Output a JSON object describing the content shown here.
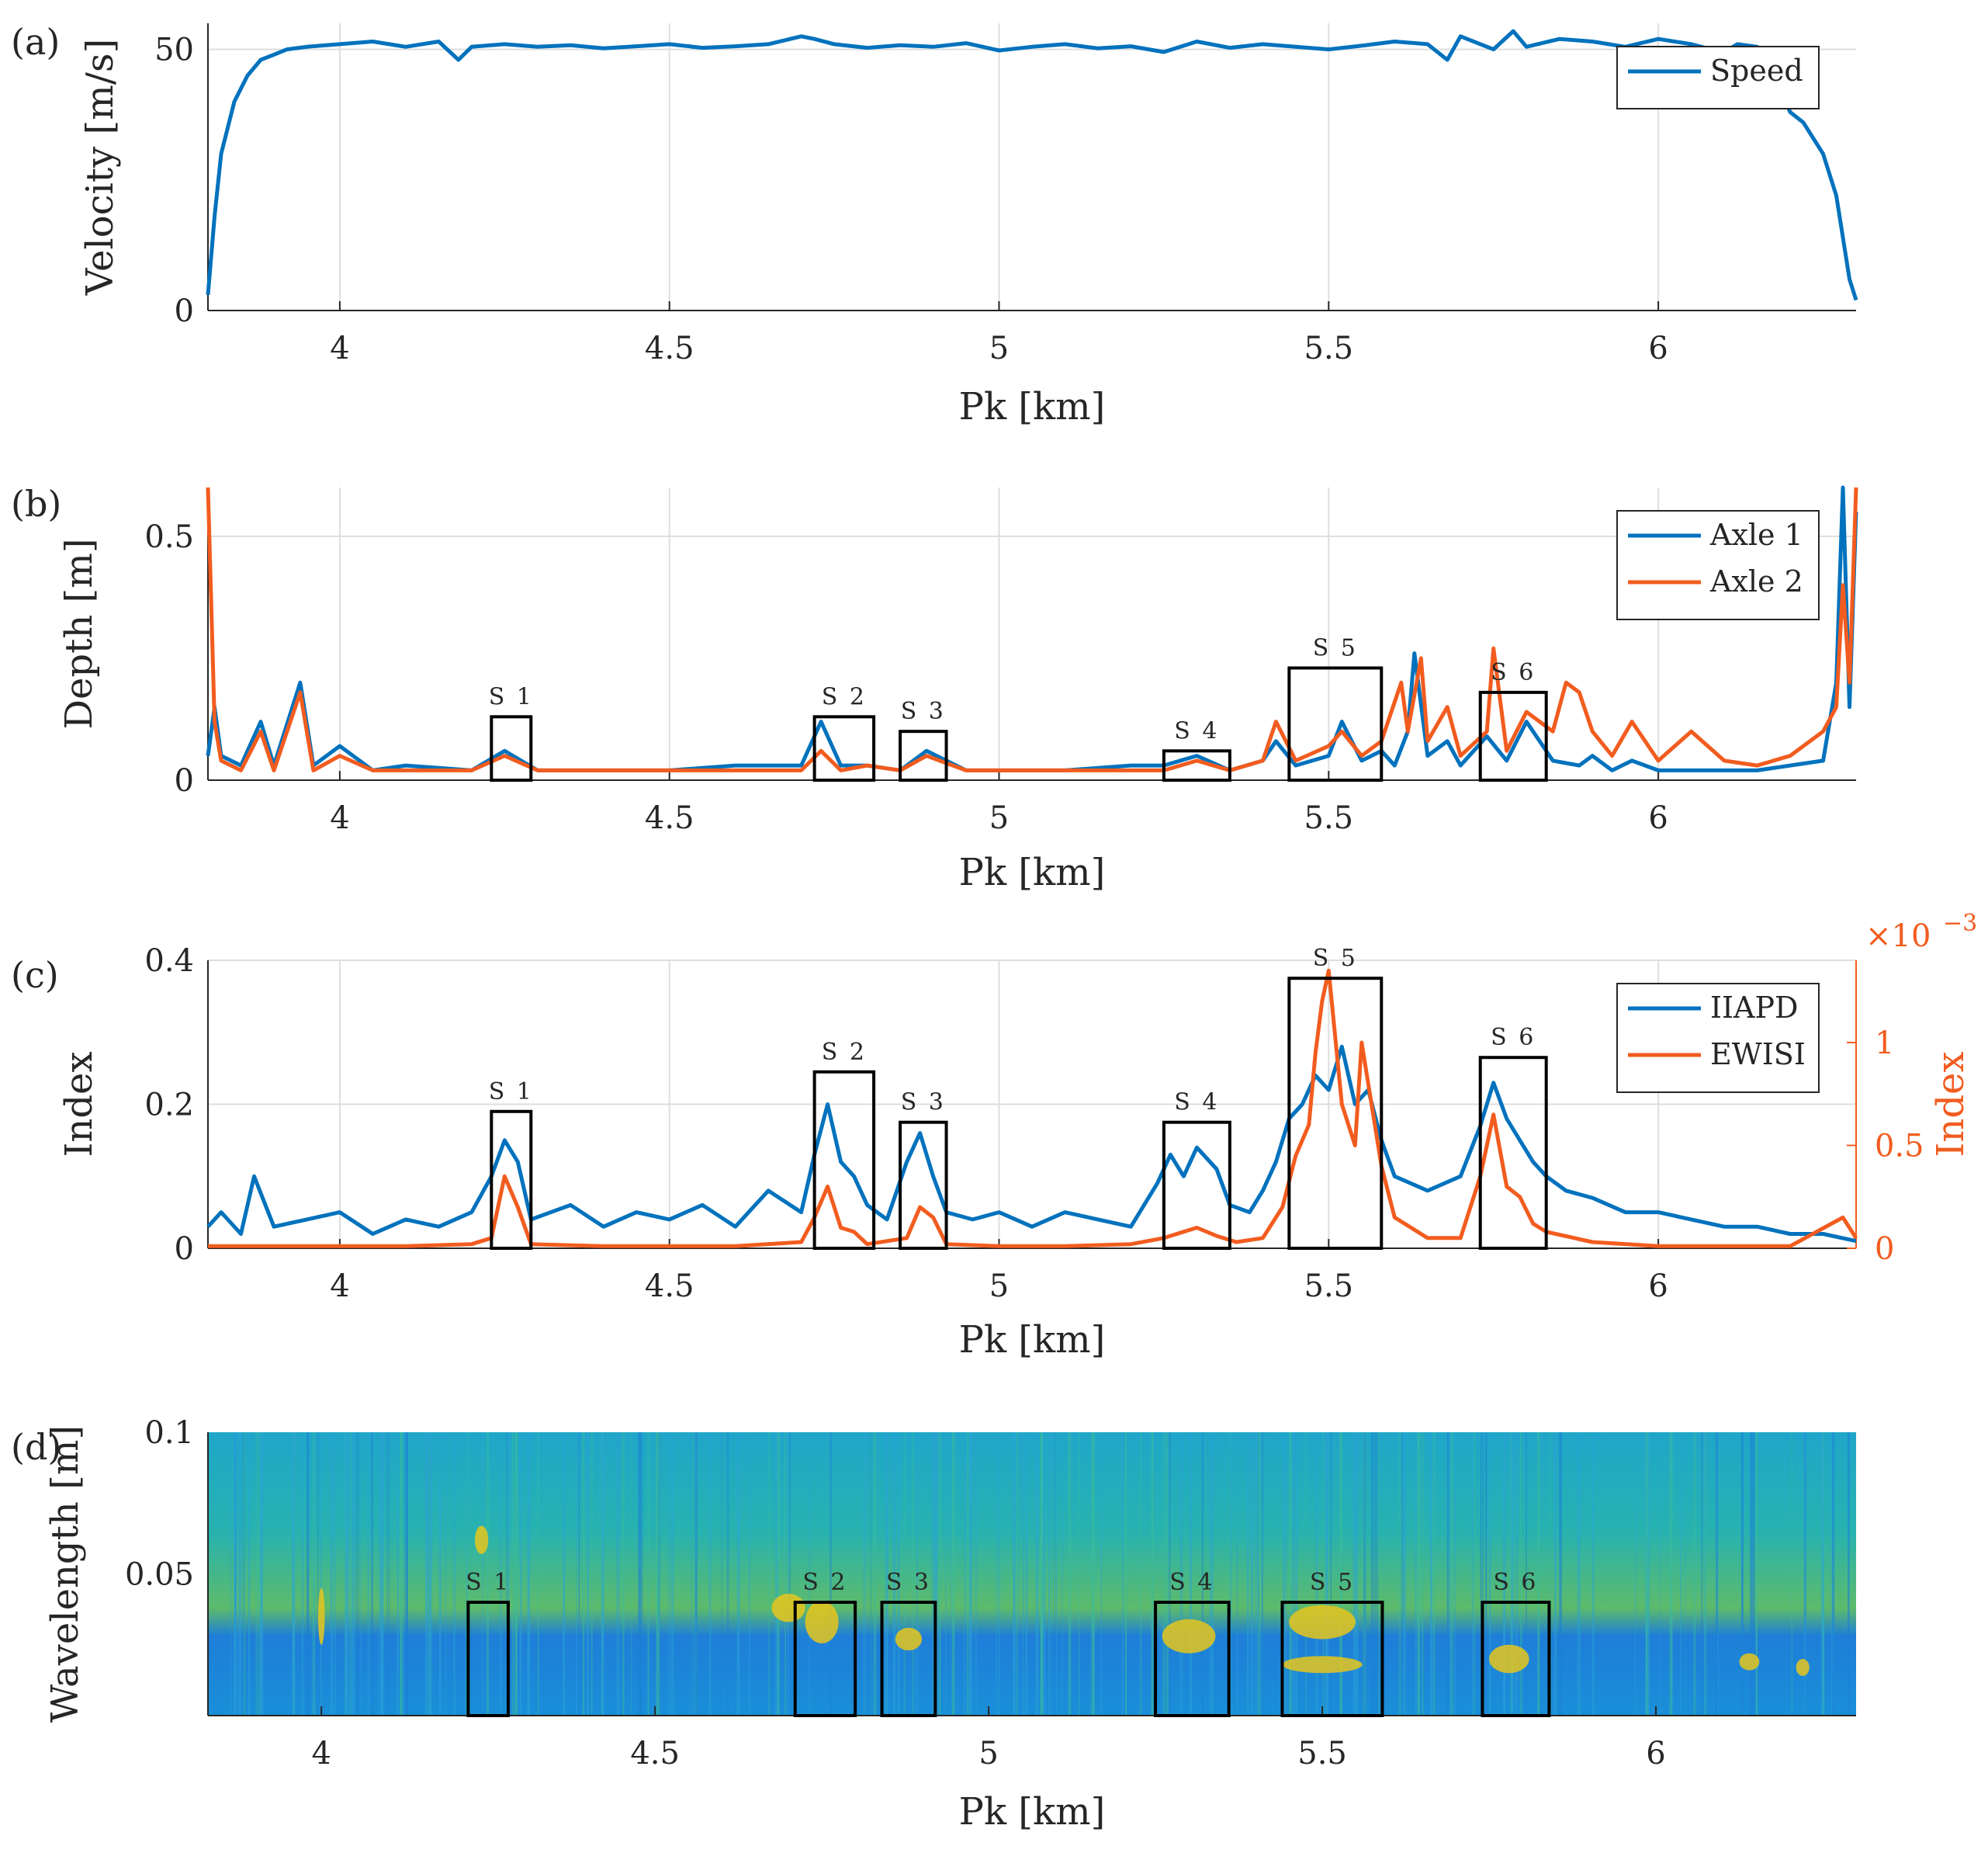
{
  "colors": {
    "blue": "#0072BD",
    "orange": "#F25C1F",
    "axis": "#262626",
    "grid": "#dedede",
    "box": "#000000"
  },
  "figure": {
    "panel_a_label": "(a)",
    "panel_b_label": "(b)",
    "panel_c_label": "(c)",
    "panel_d_label": "(d)"
  },
  "chart_data": [
    {
      "id": "a",
      "type": "line",
      "title": "",
      "xlabel": "Pk [km]",
      "ylabel": "Velocity [m/s]",
      "xlim": [
        3.8,
        6.3
      ],
      "ylim": [
        0,
        55
      ],
      "xticks": [
        4,
        4.5,
        5,
        5.5,
        6
      ],
      "xtick_labels": [
        "4",
        "4.5",
        "5",
        "5.5",
        "6"
      ],
      "yticks": [
        0,
        50
      ],
      "ytick_labels": [
        "0",
        "50"
      ],
      "grid": "vertical",
      "legend_position": "top-right",
      "series": [
        {
          "name": "Speed",
          "color": "blue",
          "x": [
            3.8,
            3.81,
            3.82,
            3.84,
            3.86,
            3.88,
            3.9,
            3.92,
            3.95,
            4.0,
            4.05,
            4.1,
            4.15,
            4.18,
            4.2,
            4.25,
            4.3,
            4.35,
            4.4,
            4.45,
            4.5,
            4.55,
            4.6,
            4.65,
            4.7,
            4.72,
            4.75,
            4.8,
            4.85,
            4.9,
            4.95,
            5.0,
            5.05,
            5.1,
            5.15,
            5.2,
            5.25,
            5.3,
            5.35,
            5.4,
            5.45,
            5.5,
            5.55,
            5.6,
            5.65,
            5.68,
            5.7,
            5.75,
            5.78,
            5.8,
            5.85,
            5.9,
            5.95,
            6.0,
            6.05,
            6.08,
            6.1,
            6.12,
            6.15,
            6.18,
            6.2,
            6.22,
            6.25,
            6.27,
            6.29,
            6.3
          ],
          "y": [
            3,
            18,
            30,
            40,
            45,
            48,
            49,
            50,
            50.5,
            51,
            51.5,
            50.5,
            51.5,
            48,
            50.5,
            51,
            50.5,
            50.8,
            50.2,
            50.6,
            51,
            50.3,
            50.6,
            51,
            52.5,
            52,
            51,
            50.3,
            50.8,
            50.5,
            51.2,
            49.8,
            50.5,
            51,
            50.2,
            50.6,
            49.5,
            51.5,
            50.3,
            51,
            50.5,
            50,
            50.7,
            51.5,
            51,
            48,
            52.5,
            50,
            53.5,
            50.5,
            52,
            51.5,
            50.5,
            52,
            51,
            50,
            49.5,
            51,
            50.5,
            44,
            38,
            36,
            30,
            22,
            6,
            2
          ]
        }
      ]
    },
    {
      "id": "b",
      "type": "line",
      "title": "",
      "xlabel": "Pk [km]",
      "ylabel": "Depth [m]",
      "xlim": [
        3.8,
        6.3
      ],
      "ylim": [
        0,
        0.6
      ],
      "xticks": [
        4,
        4.5,
        5,
        5.5,
        6
      ],
      "xtick_labels": [
        "4",
        "4.5",
        "5",
        "5.5",
        "6"
      ],
      "yticks": [
        0,
        0.5
      ],
      "ytick_labels": [
        "0",
        "0.5"
      ],
      "grid": "vertical",
      "legend_position": "top-right",
      "series": [
        {
          "name": "Axle 1",
          "color": "blue",
          "x": [
            3.8,
            3.81,
            3.82,
            3.85,
            3.88,
            3.9,
            3.94,
            3.96,
            4.0,
            4.05,
            4.1,
            4.2,
            4.25,
            4.3,
            4.4,
            4.5,
            4.6,
            4.7,
            4.73,
            4.76,
            4.8,
            4.85,
            4.89,
            4.95,
            5.0,
            5.1,
            5.2,
            5.25,
            5.3,
            5.35,
            5.4,
            5.42,
            5.45,
            5.5,
            5.52,
            5.55,
            5.58,
            5.6,
            5.62,
            5.63,
            5.65,
            5.68,
            5.7,
            5.74,
            5.77,
            5.8,
            5.84,
            5.88,
            5.9,
            5.93,
            5.96,
            6.0,
            6.05,
            6.1,
            6.15,
            6.2,
            6.25,
            6.27,
            6.28,
            6.29,
            6.3
          ],
          "y": [
            0.05,
            0.15,
            0.05,
            0.03,
            0.12,
            0.03,
            0.2,
            0.03,
            0.07,
            0.02,
            0.03,
            0.02,
            0.06,
            0.02,
            0.02,
            0.02,
            0.03,
            0.03,
            0.12,
            0.03,
            0.03,
            0.02,
            0.06,
            0.02,
            0.02,
            0.02,
            0.03,
            0.03,
            0.05,
            0.02,
            0.04,
            0.08,
            0.03,
            0.05,
            0.12,
            0.04,
            0.06,
            0.03,
            0.1,
            0.26,
            0.05,
            0.08,
            0.03,
            0.09,
            0.04,
            0.12,
            0.04,
            0.03,
            0.05,
            0.02,
            0.04,
            0.02,
            0.02,
            0.02,
            0.02,
            0.03,
            0.04,
            0.2,
            0.6,
            0.15,
            0.55
          ]
        },
        {
          "name": "Axle 2",
          "color": "orange",
          "x": [
            3.8,
            3.81,
            3.82,
            3.85,
            3.88,
            3.9,
            3.94,
            3.96,
            4.0,
            4.05,
            4.1,
            4.2,
            4.25,
            4.3,
            4.4,
            4.5,
            4.6,
            4.7,
            4.73,
            4.76,
            4.8,
            4.85,
            4.89,
            4.95,
            5.0,
            5.1,
            5.2,
            5.25,
            5.3,
            5.35,
            5.4,
            5.42,
            5.45,
            5.5,
            5.52,
            5.55,
            5.58,
            5.61,
            5.62,
            5.64,
            5.65,
            5.68,
            5.7,
            5.74,
            5.75,
            5.77,
            5.8,
            5.84,
            5.86,
            5.88,
            5.9,
            5.93,
            5.96,
            6.0,
            6.05,
            6.1,
            6.15,
            6.2,
            6.25,
            6.27,
            6.28,
            6.29,
            6.3
          ],
          "y": [
            0.6,
            0.12,
            0.04,
            0.02,
            0.1,
            0.02,
            0.18,
            0.02,
            0.05,
            0.02,
            0.02,
            0.02,
            0.05,
            0.02,
            0.02,
            0.02,
            0.02,
            0.02,
            0.06,
            0.02,
            0.03,
            0.02,
            0.05,
            0.02,
            0.02,
            0.02,
            0.02,
            0.02,
            0.04,
            0.02,
            0.04,
            0.12,
            0.04,
            0.07,
            0.1,
            0.05,
            0.08,
            0.2,
            0.1,
            0.25,
            0.08,
            0.15,
            0.05,
            0.1,
            0.27,
            0.06,
            0.14,
            0.1,
            0.2,
            0.18,
            0.1,
            0.05,
            0.12,
            0.04,
            0.1,
            0.04,
            0.03,
            0.05,
            0.1,
            0.15,
            0.4,
            0.2,
            0.6
          ]
        }
      ],
      "boxes": [
        {
          "label": "S 1",
          "x0": 4.23,
          "x1": 4.29,
          "top": 0.13
        },
        {
          "label": "S 2",
          "x0": 4.72,
          "x1": 4.81,
          "top": 0.13
        },
        {
          "label": "S 3",
          "x0": 4.85,
          "x1": 4.92,
          "top": 0.1
        },
        {
          "label": "S 4",
          "x0": 5.25,
          "x1": 5.35,
          "top": 0.06
        },
        {
          "label": "S 5",
          "x0": 5.44,
          "x1": 5.58,
          "top": 0.23
        },
        {
          "label": "S 6",
          "x0": 5.73,
          "x1": 5.83,
          "top": 0.18
        }
      ]
    },
    {
      "id": "c",
      "type": "line",
      "title": "",
      "xlabel": "Pk [km]",
      "ylabel": "Index",
      "ylabel_right": "Index",
      "exponent_right": "×10",
      "exponent_right_power": "−3",
      "xlim": [
        3.8,
        6.3
      ],
      "ylim": [
        0,
        0.4
      ],
      "ylim_right": [
        0,
        1.4
      ],
      "xticks": [
        4,
        4.5,
        5,
        5.5,
        6
      ],
      "xtick_labels": [
        "4",
        "4.5",
        "5",
        "5.5",
        "6"
      ],
      "yticks": [
        0,
        0.2,
        0.4
      ],
      "ytick_labels": [
        "0",
        "0.2",
        "0.4"
      ],
      "yticks_right": [
        0,
        0.5,
        1
      ],
      "ytick_labels_right": [
        "0",
        "0.5",
        "1"
      ],
      "grid": "vertical",
      "legend_position": "top-right",
      "series": [
        {
          "name": "IIAPD",
          "color": "blue",
          "axis": "left",
          "x": [
            3.8,
            3.82,
            3.85,
            3.87,
            3.9,
            3.95,
            4.0,
            4.05,
            4.1,
            4.15,
            4.2,
            4.23,
            4.25,
            4.27,
            4.29,
            4.35,
            4.4,
            4.45,
            4.5,
            4.55,
            4.6,
            4.65,
            4.7,
            4.72,
            4.74,
            4.76,
            4.78,
            4.8,
            4.83,
            4.86,
            4.88,
            4.9,
            4.92,
            4.96,
            5.0,
            5.05,
            5.1,
            5.15,
            5.2,
            5.24,
            5.26,
            5.28,
            5.3,
            5.33,
            5.35,
            5.38,
            5.4,
            5.42,
            5.44,
            5.46,
            5.48,
            5.5,
            5.52,
            5.54,
            5.56,
            5.58,
            5.6,
            5.65,
            5.7,
            5.73,
            5.75,
            5.77,
            5.79,
            5.81,
            5.83,
            5.86,
            5.9,
            5.95,
            6.0,
            6.05,
            6.1,
            6.15,
            6.2,
            6.25,
            6.3
          ],
          "y": [
            0.03,
            0.05,
            0.02,
            0.1,
            0.03,
            0.04,
            0.05,
            0.02,
            0.04,
            0.03,
            0.05,
            0.1,
            0.15,
            0.12,
            0.04,
            0.06,
            0.03,
            0.05,
            0.04,
            0.06,
            0.03,
            0.08,
            0.05,
            0.13,
            0.2,
            0.12,
            0.1,
            0.06,
            0.04,
            0.12,
            0.16,
            0.1,
            0.05,
            0.04,
            0.05,
            0.03,
            0.05,
            0.04,
            0.03,
            0.09,
            0.13,
            0.1,
            0.14,
            0.11,
            0.06,
            0.05,
            0.08,
            0.12,
            0.18,
            0.2,
            0.24,
            0.22,
            0.28,
            0.2,
            0.22,
            0.15,
            0.1,
            0.08,
            0.1,
            0.17,
            0.23,
            0.18,
            0.15,
            0.12,
            0.1,
            0.08,
            0.07,
            0.05,
            0.05,
            0.04,
            0.03,
            0.03,
            0.02,
            0.02,
            0.01
          ]
        },
        {
          "name": "EWISI",
          "color": "orange",
          "axis": "right",
          "x": [
            3.8,
            3.9,
            4.0,
            4.1,
            4.2,
            4.23,
            4.25,
            4.27,
            4.29,
            4.4,
            4.5,
            4.6,
            4.7,
            4.72,
            4.74,
            4.76,
            4.78,
            4.8,
            4.86,
            4.88,
            4.9,
            4.92,
            5.0,
            5.1,
            5.2,
            5.25,
            5.28,
            5.3,
            5.33,
            5.36,
            5.4,
            5.43,
            5.45,
            5.47,
            5.48,
            5.49,
            5.5,
            5.52,
            5.54,
            5.55,
            5.56,
            5.58,
            5.6,
            5.65,
            5.7,
            5.73,
            5.75,
            5.77,
            5.79,
            5.81,
            5.83,
            5.9,
            6.0,
            6.1,
            6.2,
            6.28,
            6.3
          ],
          "y": [
            0.01,
            0.01,
            0.01,
            0.01,
            0.02,
            0.05,
            0.35,
            0.2,
            0.02,
            0.01,
            0.01,
            0.01,
            0.03,
            0.15,
            0.3,
            0.1,
            0.08,
            0.02,
            0.05,
            0.2,
            0.15,
            0.02,
            0.01,
            0.01,
            0.02,
            0.05,
            0.08,
            0.1,
            0.06,
            0.03,
            0.05,
            0.2,
            0.45,
            0.6,
            0.95,
            1.2,
            1.35,
            0.7,
            0.5,
            1.0,
            0.8,
            0.4,
            0.15,
            0.05,
            0.05,
            0.35,
            0.65,
            0.3,
            0.25,
            0.12,
            0.08,
            0.03,
            0.01,
            0.01,
            0.01,
            0.15,
            0.05
          ]
        }
      ],
      "boxes": [
        {
          "label": "S 1",
          "x0": 4.23,
          "x1": 4.29,
          "top": 0.19
        },
        {
          "label": "S 2",
          "x0": 4.72,
          "x1": 4.81,
          "top": 0.245
        },
        {
          "label": "S 3",
          "x0": 4.85,
          "x1": 4.92,
          "top": 0.175
        },
        {
          "label": "S 4",
          "x0": 5.25,
          "x1": 5.35,
          "top": 0.175
        },
        {
          "label": "S 5",
          "x0": 5.44,
          "x1": 5.58,
          "top": 0.375
        },
        {
          "label": "S 6",
          "x0": 5.73,
          "x1": 5.83,
          "top": 0.265
        }
      ]
    },
    {
      "id": "d",
      "type": "heatmap",
      "title": "",
      "xlabel": "Pk [km]",
      "ylabel": "Wavelength [m]",
      "xlim": [
        3.83,
        6.3
      ],
      "ylim": [
        0,
        0.1
      ],
      "xticks": [
        4,
        4.5,
        5,
        5.5,
        6
      ],
      "xtick_labels": [
        "4",
        "4.5",
        "5",
        "5.5",
        "6"
      ],
      "yticks": [
        0.05,
        0.1
      ],
      "ytick_labels": [
        "0.05",
        "0.1"
      ],
      "colormap": "parula",
      "hotspots": [
        {
          "x": 4.24,
          "y": 0.062,
          "w": 0.02,
          "h": 0.01
        },
        {
          "x": 4.75,
          "y": 0.033,
          "w": 0.05,
          "h": 0.015
        },
        {
          "x": 4.88,
          "y": 0.027,
          "w": 0.04,
          "h": 0.008
        },
        {
          "x": 5.3,
          "y": 0.028,
          "w": 0.08,
          "h": 0.012
        },
        {
          "x": 5.5,
          "y": 0.033,
          "w": 0.1,
          "h": 0.012
        },
        {
          "x": 5.5,
          "y": 0.018,
          "w": 0.12,
          "h": 0.006
        },
        {
          "x": 5.78,
          "y": 0.02,
          "w": 0.06,
          "h": 0.01
        },
        {
          "x": 4.7,
          "y": 0.038,
          "w": 0.05,
          "h": 0.01
        },
        {
          "x": 4.0,
          "y": 0.035,
          "w": 0.01,
          "h": 0.02
        },
        {
          "x": 6.14,
          "y": 0.019,
          "w": 0.03,
          "h": 0.006
        },
        {
          "x": 6.22,
          "y": 0.017,
          "w": 0.02,
          "h": 0.006
        }
      ],
      "boxes": [
        {
          "label": "S 1",
          "x0": 4.22,
          "x1": 4.28,
          "top": 0.04,
          "bottom": 0.0
        },
        {
          "label": "S 2",
          "x0": 4.71,
          "x1": 4.8,
          "top": 0.04,
          "bottom": 0.0
        },
        {
          "label": "S 3",
          "x0": 4.84,
          "x1": 4.92,
          "top": 0.04,
          "bottom": 0.0
        },
        {
          "label": "S 4",
          "x0": 5.25,
          "x1": 5.36,
          "top": 0.04,
          "bottom": 0.0
        },
        {
          "label": "S 5",
          "x0": 5.44,
          "x1": 5.59,
          "top": 0.04,
          "bottom": 0.0
        },
        {
          "label": "S 6",
          "x0": 5.74,
          "x1": 5.84,
          "top": 0.04,
          "bottom": 0.0
        }
      ]
    }
  ]
}
